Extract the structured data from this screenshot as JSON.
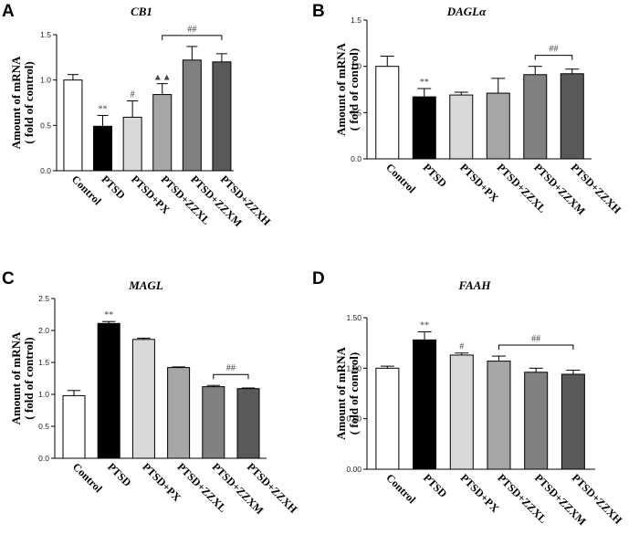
{
  "chart_data": [
    {
      "panel": "A",
      "type": "bar",
      "title": "CB1",
      "ylabel": "Amount of mRNA\n( fold of control)",
      "categories": [
        "Control",
        "PTSD",
        "PTSD+PX",
        "PTSD+ZZXL",
        "PTSD+ZZXM",
        "PTSD+ZZXH"
      ],
      "values": [
        1.0,
        0.49,
        0.59,
        0.84,
        1.22,
        1.2
      ],
      "errors": [
        0.06,
        0.12,
        0.18,
        0.12,
        0.15,
        0.09
      ],
      "colors": [
        "#ffffff",
        "#000000",
        "#d9d9d9",
        "#a6a6a6",
        "#808080",
        "#595959"
      ],
      "ylim": [
        0,
        1.5
      ],
      "yticks": [
        "0.0",
        "0.5",
        "1.0",
        "1.5"
      ],
      "marks": [
        {
          "index": 1,
          "text": "**"
        },
        {
          "index": 2,
          "text": "#"
        },
        {
          "index": 3,
          "text": "▲▲"
        }
      ],
      "brackets": [
        {
          "from": 3,
          "to": 5,
          "text": "##"
        }
      ]
    },
    {
      "panel": "B",
      "type": "bar",
      "title": "DAGLα",
      "ylabel": "Amount of mRNA\n( fold of control)",
      "categories": [
        "Control",
        "PTSD",
        "PTSD+PX",
        "PTSD+ZZXL",
        "PTSD+ZZXM",
        "PTSD+ZZXH"
      ],
      "values": [
        1.0,
        0.67,
        0.69,
        0.71,
        0.91,
        0.92
      ],
      "errors": [
        0.11,
        0.09,
        0.03,
        0.16,
        0.09,
        0.05
      ],
      "colors": [
        "#ffffff",
        "#000000",
        "#d9d9d9",
        "#a6a6a6",
        "#808080",
        "#595959"
      ],
      "ylim": [
        0,
        1.5
      ],
      "yticks": [
        "0.0",
        "0.5",
        "1.0",
        "1.5"
      ],
      "marks": [
        {
          "index": 1,
          "text": "**"
        }
      ],
      "brackets": [
        {
          "from": 4,
          "to": 5,
          "text": "##"
        }
      ]
    },
    {
      "panel": "C",
      "type": "bar",
      "title": "MAGL",
      "ylabel": "Amount of mRNA\n( fold of control)",
      "categories": [
        "Control",
        "PTSD",
        "PTSD+PX",
        "PTSD+ZZXL",
        "PTSD+ZZXM",
        "PTSD+ZZXH"
      ],
      "values": [
        0.98,
        2.11,
        1.86,
        1.42,
        1.12,
        1.09
      ],
      "errors": [
        0.08,
        0.03,
        0.02,
        0.01,
        0.02,
        0.01
      ],
      "colors": [
        "#ffffff",
        "#000000",
        "#d9d9d9",
        "#a6a6a6",
        "#808080",
        "#595959"
      ],
      "ylim": [
        0,
        2.5
      ],
      "yticks": [
        "0.0",
        "0.5",
        "1.0",
        "1.5",
        "2.0",
        "2.5"
      ],
      "marks": [
        {
          "index": 1,
          "text": "**"
        }
      ],
      "brackets": [
        {
          "from": 4,
          "to": 5,
          "text": "##"
        }
      ]
    },
    {
      "panel": "D",
      "type": "bar",
      "title": "FAAH",
      "ylabel": "Amount of mRNA\n( fold of control)",
      "categories": [
        "Control",
        "PTSD",
        "PTSD+PX",
        "PTSD+ZZXL",
        "PTSD+ZZXM",
        "PTSD+ZZXH"
      ],
      "values": [
        1.0,
        1.28,
        1.13,
        1.07,
        0.96,
        0.94
      ],
      "errors": [
        0.02,
        0.08,
        0.02,
        0.05,
        0.04,
        0.04
      ],
      "colors": [
        "#ffffff",
        "#000000",
        "#d9d9d9",
        "#a6a6a6",
        "#808080",
        "#595959"
      ],
      "ylim": [
        0,
        1.5
      ],
      "yticks": [
        "0.00",
        "0.50",
        "1.00",
        "1.50"
      ],
      "marks": [
        {
          "index": 1,
          "text": "**"
        },
        {
          "index": 2,
          "text": "#"
        }
      ],
      "brackets": [
        {
          "from": 3,
          "to": 5,
          "text": "##"
        }
      ]
    }
  ]
}
